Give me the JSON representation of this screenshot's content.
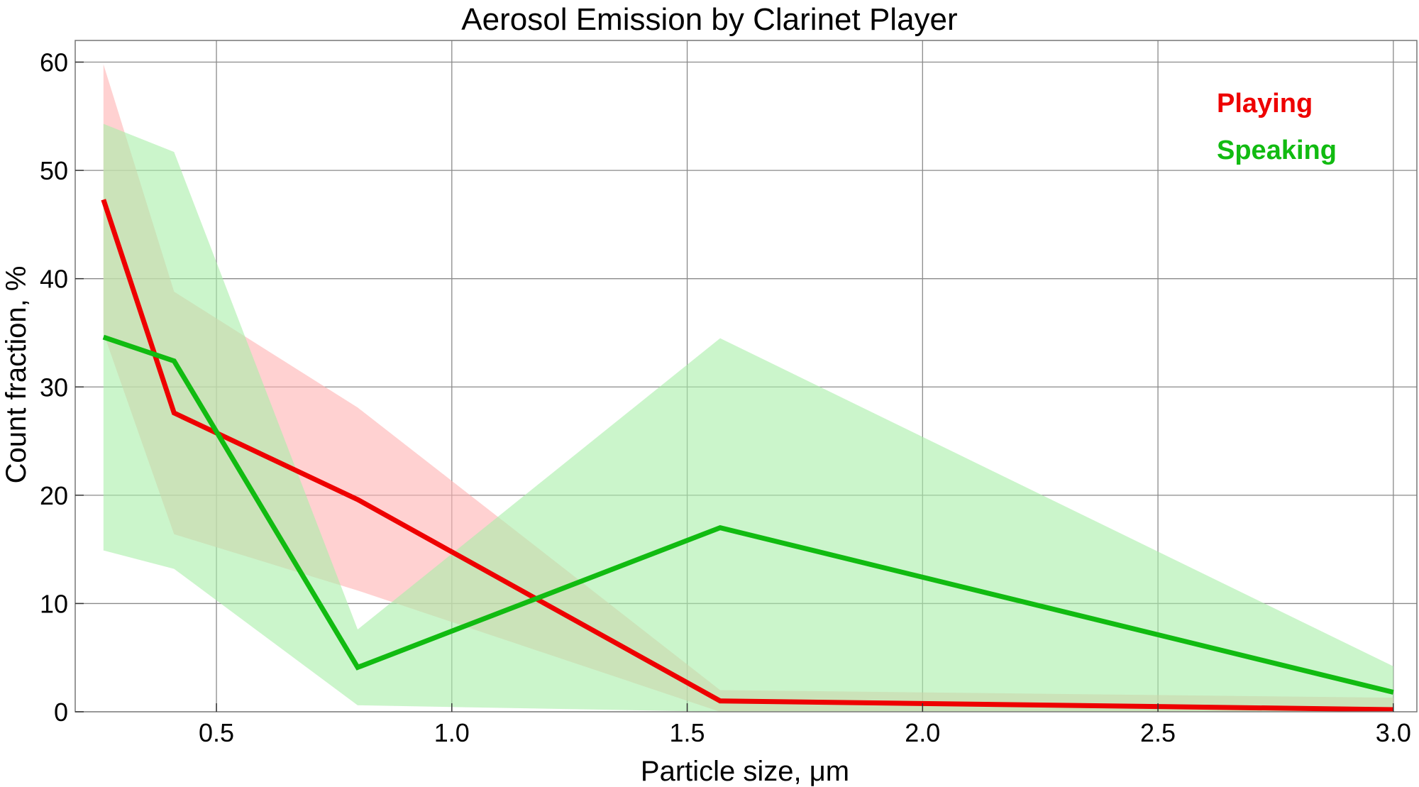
{
  "chart_data": {
    "type": "line",
    "title": "Aerosol Emission by Clarinet Player",
    "xlabel": "Particle size,  μm",
    "ylabel": "Count  fraction,  %",
    "xlim": [
      0.2,
      3.05
    ],
    "ylim": [
      0,
      62
    ],
    "x_ticks": [
      0.5,
      1.0,
      1.5,
      2.0,
      2.5,
      3.0
    ],
    "x_tick_labels": [
      "0.5",
      "1.0",
      "1.5",
      "2.0",
      "2.5",
      "3.0"
    ],
    "y_ticks": [
      0,
      10,
      20,
      30,
      40,
      50,
      60
    ],
    "y_tick_labels": [
      "0",
      "10",
      "20",
      "30",
      "40",
      "50",
      "60"
    ],
    "grid": true,
    "legend_position": "top-right",
    "series": [
      {
        "name": "Playing",
        "color": "#ee0000",
        "band_color": "#ffb3b3",
        "x": [
          0.26,
          0.41,
          0.8,
          1.57,
          3.0
        ],
        "values": [
          47.3,
          27.6,
          19.6,
          1.0,
          0.2
        ],
        "lower": [
          35.0,
          16.4,
          11.2,
          0.0,
          0.0
        ],
        "upper": [
          59.8,
          38.8,
          28.1,
          2.0,
          1.3
        ]
      },
      {
        "name": "Speaking",
        "color": "#11bb11",
        "band_color": "#a8eea8",
        "x": [
          0.26,
          0.41,
          0.8,
          1.57,
          3.0
        ],
        "values": [
          34.6,
          32.4,
          4.1,
          17.0,
          1.8
        ],
        "lower": [
          14.9,
          13.2,
          0.6,
          0.0,
          0.0
        ],
        "upper": [
          54.3,
          51.7,
          7.6,
          34.5,
          4.2
        ]
      }
    ]
  }
}
